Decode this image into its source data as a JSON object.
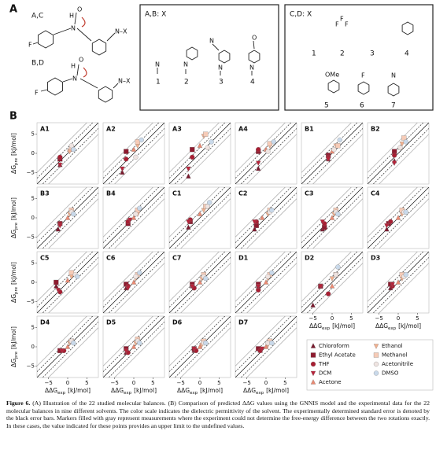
{
  "part_a": {
    "label": "A",
    "mol_ac": {
      "title": "A,C",
      "atoms": [
        "F",
        "N",
        "O",
        "H",
        "N–X"
      ]
    },
    "mol_bd": {
      "title": "B,D",
      "atoms": [
        "F",
        "N",
        "O",
        "H",
        "N–X"
      ]
    },
    "box_ab": {
      "title": "A,B: X",
      "numbers": [
        "1",
        "2",
        "3",
        "4"
      ],
      "atoms": [
        "N",
        "N",
        "N",
        "N",
        "N",
        "O"
      ]
    },
    "box_cd": {
      "title": "C,D: X",
      "numbers": [
        "1",
        "2",
        "3",
        "4",
        "5",
        "6",
        "7"
      ],
      "atoms": [
        "OMe",
        "F",
        "N",
        "F",
        "F",
        "F"
      ]
    }
  },
  "chart_data": {
    "type": "scatter",
    "panel_label": "B",
    "xlim": [
      -8,
      8
    ],
    "ylim": [
      -8,
      8
    ],
    "xticks": [
      {
        "value": -5,
        "label": "−5"
      },
      0,
      5
    ],
    "yticks": [
      {
        "value": -5,
        "label": "−5"
      },
      0,
      5
    ],
    "x_label": {
      "main": "ΔΔG",
      "sub": "exp",
      "unit": "[kJ/mol]"
    },
    "y_label": {
      "main": "ΔG",
      "sub": "pre",
      "unit": "[kJ/mol]"
    },
    "reference_lines": [
      {
        "offset": 0,
        "style": "solid"
      },
      {
        "offset": 1.5,
        "style": "dashed"
      },
      {
        "offset": -1.5,
        "style": "dashed"
      },
      {
        "offset": 3,
        "style": "gray"
      },
      {
        "offset": -3,
        "style": "gray"
      }
    ],
    "solvents": [
      {
        "name": "Chloroform",
        "color": "#7a1a2e",
        "marker": "triangle-up"
      },
      {
        "name": "Ethyl Acetate",
        "color": "#8e1b2f",
        "marker": "square"
      },
      {
        "name": "THF",
        "color": "#a81e32",
        "marker": "circle"
      },
      {
        "name": "DCM",
        "color": "#b8233a",
        "marker": "triangle-down"
      },
      {
        "name": "Acetone",
        "color": "#e98a73",
        "marker": "triangle-up"
      },
      {
        "name": "Ethanol",
        "color": "#f2b08e",
        "marker": "triangle-down"
      },
      {
        "name": "Methanol",
        "color": "#f6cbb7",
        "marker": "square"
      },
      {
        "name": "Acetonitrile",
        "color": "#efe4e1",
        "marker": "circle"
      },
      {
        "name": "DMSO",
        "color": "#c9d9ea",
        "marker": "circle"
      }
    ],
    "panels": [
      {
        "name": "A1",
        "x": [
          -2,
          -2,
          -2,
          -2,
          0.5,
          0.5,
          1,
          1,
          1.5
        ],
        "y": [
          -3,
          -1.5,
          -1,
          -3,
          1,
          0.5,
          1.5,
          2,
          1
        ]
      },
      {
        "name": "A2",
        "x": [
          -3,
          -2,
          -2,
          -3,
          0,
          1,
          1,
          0.5,
          2
        ],
        "y": [
          -5,
          0.5,
          -1.5,
          -4,
          1,
          2,
          3,
          -1,
          3.5
        ]
      },
      {
        "name": "A3",
        "x": [
          -3,
          -2,
          -2,
          -3,
          0,
          1,
          1.5,
          2,
          3
        ],
        "y": [
          -6,
          1,
          -1,
          -4,
          2,
          4.5,
          5,
          1.5,
          3
        ]
      },
      {
        "name": "A4",
        "x": [
          -2,
          -2,
          -2,
          -2,
          0,
          1,
          1,
          0.5,
          2
        ],
        "y": [
          -4,
          0.5,
          1,
          -2.5,
          1,
          2,
          2.5,
          0.5,
          3
        ]
      },
      {
        "name": "B1",
        "x": [
          -1,
          -1,
          -1,
          -1,
          0,
          1,
          1.5,
          0.5,
          2
        ],
        "y": [
          -1.5,
          -0.5,
          -1,
          -1.5,
          0.5,
          2,
          2,
          1,
          3.5
        ]
      },
      {
        "name": "B2",
        "x": [
          -1,
          -1,
          -1,
          -1,
          0.5,
          1,
          1.5,
          0.5,
          2
        ],
        "y": [
          -2,
          0.5,
          -0.5,
          -2.5,
          1.5,
          2.5,
          4,
          1.5,
          3
        ]
      },
      {
        "name": "B3",
        "x": [
          -2.5,
          -2,
          -2,
          -2,
          0,
          0.5,
          1,
          1,
          1.5
        ],
        "y": [
          -3,
          -1.5,
          -1.5,
          -2,
          0,
          1,
          2,
          1.5,
          1
        ]
      },
      {
        "name": "B4",
        "x": [
          -1.5,
          -1.5,
          -1.5,
          -1,
          0,
          1,
          1,
          0.5,
          1.5
        ],
        "y": [
          -1.5,
          -1.5,
          -1,
          -0.5,
          0,
          1,
          2,
          1,
          2.5
        ]
      },
      {
        "name": "C1",
        "x": [
          -3,
          -2.5,
          -2.5,
          -3,
          0,
          1,
          1.5,
          2,
          2.5
        ],
        "y": [
          -2.5,
          -1,
          -0.5,
          -1,
          1,
          2,
          3,
          3,
          4
        ]
      },
      {
        "name": "C2",
        "x": [
          -3,
          -2.5,
          -2.5,
          -3,
          -1,
          0.5,
          1,
          1,
          1.5
        ],
        "y": [
          -3,
          -2,
          -1,
          -1,
          0,
          1,
          2,
          1.5,
          2
        ]
      },
      {
        "name": "C3",
        "x": [
          -2.5,
          -2,
          -2,
          -2.5,
          0,
          0.5,
          1,
          1,
          1.5
        ],
        "y": [
          -3,
          -2.5,
          -1.5,
          -1,
          0,
          1,
          2,
          1.5,
          1
        ]
      },
      {
        "name": "C4",
        "x": [
          -3,
          -2.5,
          -2,
          -3,
          0,
          1,
          1,
          1.5,
          2
        ],
        "y": [
          -3,
          -1.5,
          -1,
          -2,
          0,
          1,
          2,
          1.5,
          1.5
        ]
      },
      {
        "name": "C5",
        "x": [
          -3,
          -3,
          -2,
          -2.5,
          0,
          1,
          1,
          2,
          2.5
        ],
        "y": [
          -1,
          0,
          -2.5,
          -2,
          0.5,
          1.5,
          2.5,
          2,
          1.5
        ]
      },
      {
        "name": "C6",
        "x": [
          -2,
          -2,
          -1.5,
          -1.5,
          0,
          0.5,
          1,
          0.5,
          1.5
        ],
        "y": [
          -1.5,
          -0.5,
          -1,
          -1.5,
          0,
          1,
          2,
          1.5,
          2.5
        ]
      },
      {
        "name": "C7",
        "x": [
          -2,
          -2,
          -1.5,
          -2,
          0,
          0.5,
          1,
          1,
          1.5
        ],
        "y": [
          -1,
          -0.5,
          -1.5,
          -1,
          0,
          1,
          2,
          1.5,
          1
        ]
      },
      {
        "name": "D1",
        "x": [
          -2,
          -2,
          -2,
          -2,
          0,
          0.5,
          1,
          0.5,
          1.5
        ],
        "y": [
          -1,
          -0.5,
          -2,
          -1,
          0,
          1,
          2,
          1.5,
          2.5
        ]
      },
      {
        "name": "D2",
        "x": [
          -5,
          -3,
          -1,
          -3,
          0,
          0,
          1,
          1,
          1.5
        ],
        "y": [
          -6,
          -1,
          -3,
          -1,
          -1,
          1,
          2,
          2,
          4
        ]
      },
      {
        "name": "D3",
        "x": [
          -2,
          -2,
          -1.5,
          -1.5,
          0,
          1,
          1,
          1.5,
          2
        ],
        "y": [
          -1.5,
          -0.5,
          -1,
          -0.5,
          0,
          1,
          2,
          1.5,
          2
        ]
      },
      {
        "name": "D4",
        "x": [
          -1.5,
          -2,
          -1,
          -1.5,
          0,
          0.5,
          1,
          1,
          1.5
        ],
        "y": [
          -1,
          -1,
          -1,
          -1,
          0,
          1,
          1.5,
          1.5,
          1
        ]
      },
      {
        "name": "D5",
        "x": [
          -2,
          -2,
          -1.5,
          -2,
          0,
          0.5,
          1,
          1,
          1.5
        ],
        "y": [
          -1.5,
          -0.5,
          -1.5,
          -1,
          0,
          1,
          2,
          1.5,
          1
        ]
      },
      {
        "name": "D6",
        "x": [
          -1.5,
          -1.5,
          -1,
          -1.5,
          0,
          0.5,
          1,
          1,
          1.5
        ],
        "y": [
          -1,
          -0.5,
          -1,
          -0.5,
          0,
          0.5,
          1.5,
          1,
          1
        ]
      },
      {
        "name": "D7",
        "x": [
          -1.5,
          -2,
          -1.5,
          -1,
          0,
          0.5,
          1,
          0.5,
          1.5
        ],
        "y": [
          -1,
          -0.5,
          -1,
          -0.5,
          0,
          0.5,
          1.5,
          1,
          1
        ]
      }
    ]
  },
  "caption": {
    "label": "Figure 6.",
    "text": "(A) Illustration of the 22 studied molecular balances. (B) Comparison of predicted ΔΔG values using the GNNIS model and the experimental data for the 22 molecular balances in nine different solvents. The color scale indicates the dielectric permittivity of the solvent. The experimentally determined standard error is denoted by the black error bars. Markers filled with gray represent measurements where the experiment could not determine the free-energy difference between the two rotations exactly. In these cases, the value indicated for these points provides an upper limit to the undefined values."
  }
}
